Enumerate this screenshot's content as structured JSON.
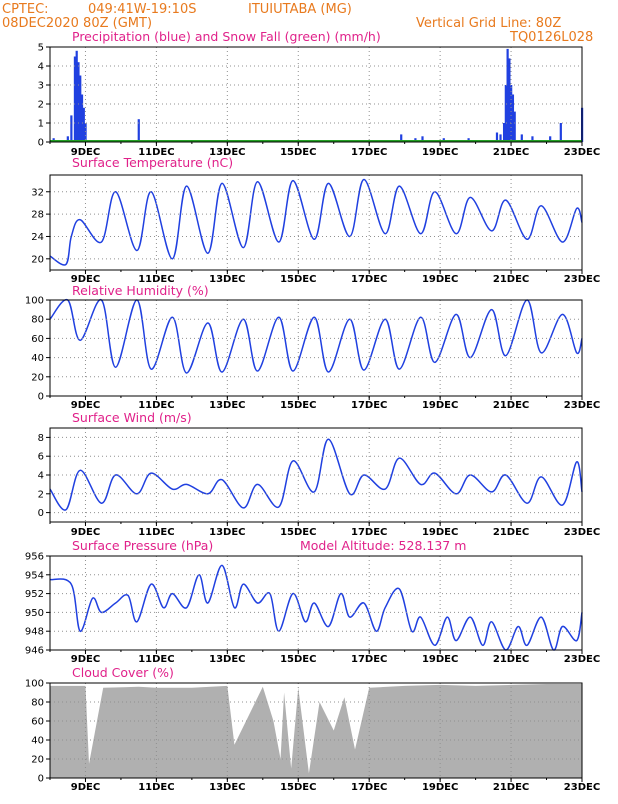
{
  "header": {
    "source": "CPTEC:",
    "location": "049:41W-19:10S",
    "station": "ITUIUTABA (MG)",
    "run": "08DEC2020 80Z (GMT)",
    "grid_line": "Vertical Grid Line: 80Z",
    "model": "TQ0126L028"
  },
  "colors": {
    "header": "#e87a1e",
    "panel_title": "#e0218a",
    "line": "#2040e0",
    "snow": "#20a020",
    "cloud": "#b0b0b0",
    "grid": "#909090"
  },
  "x_ticks": [
    "9DEC",
    "11DEC",
    "13DEC",
    "15DEC",
    "17DEC",
    "19DEC",
    "21DEC",
    "23DEC"
  ],
  "chart_data": [
    {
      "type": "bar",
      "title": "Precipitation (blue) and Snow Fall (green) (mm/h)",
      "ylim": [
        0,
        5
      ],
      "yticks": [
        "0",
        "1",
        "2",
        "3",
        "4",
        "5"
      ],
      "series": [
        {
          "name": "Precipitation",
          "color": "#2040e0",
          "x": [
            8.1,
            8.5,
            8.6,
            8.7,
            8.75,
            8.8,
            8.85,
            8.9,
            8.95,
            9.0,
            10.5,
            17.9,
            18.3,
            18.5,
            19.1,
            19.8,
            20.6,
            20.7,
            20.8,
            20.85,
            20.9,
            20.95,
            21.0,
            21.05,
            21.1,
            21.3,
            21.6,
            22.1,
            22.4,
            23.0
          ],
          "values": [
            0.2,
            0.3,
            1.4,
            4.5,
            4.8,
            4.2,
            3.5,
            2.5,
            1.8,
            1.0,
            1.2,
            0.4,
            0.2,
            0.3,
            0.2,
            0.2,
            0.5,
            0.4,
            1.0,
            3.0,
            4.9,
            4.4,
            3.0,
            2.5,
            1.6,
            0.4,
            0.3,
            0.3,
            1.0,
            1.8
          ]
        },
        {
          "name": "Snow Fall",
          "color": "#20a020",
          "x": [
            8.0,
            23.0
          ],
          "values": [
            0.1,
            0.1
          ]
        }
      ]
    },
    {
      "type": "line",
      "title": "Surface Temperature (nC)",
      "ylim": [
        18,
        35
      ],
      "yticks": [
        "20",
        "24",
        "28",
        "32"
      ],
      "series": [
        {
          "name": "Temperature",
          "x": [
            8.0,
            8.45,
            8.6,
            8.85,
            9.45,
            9.85,
            10.45,
            10.85,
            11.45,
            11.85,
            12.45,
            12.85,
            13.45,
            13.85,
            14.45,
            14.85,
            15.45,
            15.85,
            16.45,
            16.85,
            17.45,
            17.85,
            18.45,
            18.85,
            19.45,
            19.85,
            20.45,
            20.85,
            21.45,
            21.85,
            22.45,
            22.85,
            23.0
          ],
          "values": [
            20.5,
            19.0,
            24.0,
            27.0,
            23.0,
            32.0,
            21.5,
            32.0,
            20.0,
            33.0,
            21.0,
            33.5,
            22.0,
            33.8,
            23.0,
            34.0,
            23.5,
            33.5,
            24.0,
            34.2,
            24.5,
            33.0,
            24.5,
            32.0,
            24.5,
            31.0,
            25.0,
            30.5,
            23.5,
            29.5,
            23.0,
            29.0,
            26.5
          ]
        }
      ]
    },
    {
      "type": "line",
      "title": "Relative Humidity (%)",
      "ylim": [
        0,
        100
      ],
      "yticks": [
        "0",
        "20",
        "40",
        "60",
        "80",
        "100"
      ],
      "series": [
        {
          "name": "Humidity",
          "x": [
            8.0,
            8.5,
            8.85,
            9.45,
            9.85,
            10.45,
            10.85,
            11.45,
            11.85,
            12.45,
            12.85,
            13.45,
            13.85,
            14.45,
            14.85,
            15.45,
            15.85,
            16.45,
            16.85,
            17.45,
            17.85,
            18.45,
            18.85,
            19.45,
            19.85,
            20.45,
            20.85,
            21.45,
            21.85,
            22.45,
            22.85,
            23.0
          ],
          "values": [
            80,
            100,
            58,
            100,
            30,
            100,
            28,
            82,
            24,
            76,
            25,
            80,
            26,
            82,
            26,
            82,
            25,
            80,
            27,
            80,
            28,
            82,
            35,
            85,
            40,
            90,
            42,
            100,
            45,
            85,
            45,
            60
          ]
        }
      ]
    },
    {
      "type": "line",
      "title": "Surface Wind (m/s)",
      "ylim": [
        -1,
        9
      ],
      "yticks": [
        "0",
        "2",
        "4",
        "6",
        "8"
      ],
      "series": [
        {
          "name": "Wind",
          "x": [
            8.0,
            8.45,
            8.85,
            9.45,
            9.85,
            10.45,
            10.85,
            11.45,
            11.85,
            12.45,
            12.85,
            13.45,
            13.85,
            14.45,
            14.85,
            15.45,
            15.85,
            16.45,
            16.85,
            17.45,
            17.85,
            18.45,
            18.85,
            19.45,
            19.85,
            20.45,
            20.85,
            21.45,
            21.85,
            22.45,
            22.85,
            23.0
          ],
          "values": [
            2.5,
            0.3,
            4.5,
            1.0,
            4.0,
            2.0,
            4.2,
            2.5,
            3.0,
            2.0,
            3.5,
            0.5,
            3.0,
            0.6,
            5.5,
            2.2,
            7.8,
            2.0,
            4.0,
            2.5,
            5.8,
            3.0,
            4.2,
            2.0,
            4.0,
            2.2,
            4.0,
            1.0,
            3.8,
            0.8,
            5.4,
            2.2
          ]
        }
      ]
    },
    {
      "type": "line",
      "title": "Surface Pressure (hPa)",
      "subtitle": "Model Altitude: 528.137 m",
      "ylim": [
        946,
        956
      ],
      "yticks": [
        "946",
        "948",
        "950",
        "952",
        "954",
        "956"
      ],
      "series": [
        {
          "name": "Pressure",
          "x": [
            8.0,
            8.6,
            8.85,
            9.2,
            9.45,
            9.85,
            10.2,
            10.45,
            10.85,
            11.2,
            11.45,
            11.85,
            12.2,
            12.45,
            12.85,
            13.2,
            13.45,
            13.85,
            14.2,
            14.45,
            14.85,
            15.2,
            15.45,
            15.85,
            16.2,
            16.45,
            16.85,
            17.2,
            17.45,
            17.85,
            18.2,
            18.45,
            18.85,
            19.2,
            19.45,
            19.85,
            20.2,
            20.45,
            20.85,
            21.2,
            21.45,
            21.85,
            22.2,
            22.45,
            22.85,
            23.0
          ],
          "values": [
            953.5,
            953.0,
            948.0,
            951.5,
            950.0,
            951.0,
            951.8,
            949.0,
            953.0,
            950.5,
            952.0,
            950.5,
            954.0,
            951.0,
            955.0,
            950.5,
            953.0,
            951.0,
            952.0,
            948.0,
            952.0,
            949.0,
            951.0,
            948.5,
            952.0,
            949.5,
            951.0,
            948.0,
            950.5,
            952.5,
            948.0,
            949.5,
            946.5,
            949.5,
            947.0,
            949.5,
            946.5,
            949.0,
            946.0,
            948.5,
            946.5,
            949.5,
            946.0,
            948.5,
            947.0,
            950.0
          ]
        }
      ]
    },
    {
      "type": "area",
      "title": "Cloud Cover (%)",
      "ylim": [
        0,
        100
      ],
      "yticks": [
        "0",
        "20",
        "40",
        "60",
        "80",
        "100"
      ],
      "series": [
        {
          "name": "Cloud Cover",
          "x": [
            8.0,
            8.8,
            9.0,
            9.1,
            9.5,
            10.5,
            11.0,
            12.0,
            13.0,
            13.2,
            14.0,
            14.3,
            14.5,
            14.6,
            14.8,
            15.0,
            15.3,
            15.6,
            16.0,
            16.3,
            16.6,
            17.0,
            18.0,
            19.0,
            20.0,
            21.0,
            22.0,
            23.0
          ],
          "values": [
            97,
            97,
            97,
            15,
            95,
            96,
            95,
            95,
            97,
            35,
            96,
            60,
            20,
            90,
            10,
            95,
            5,
            80,
            50,
            85,
            30,
            95,
            97,
            98,
            97,
            98,
            99,
            99
          ]
        }
      ]
    }
  ]
}
